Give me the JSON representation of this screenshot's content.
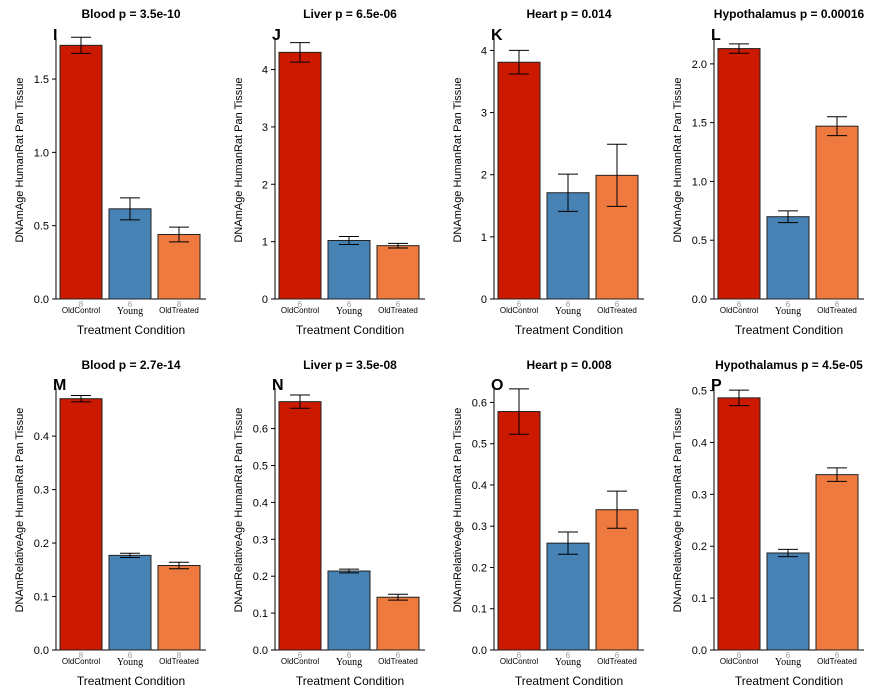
{
  "colors": {
    "OldControl": "#cc1a00",
    "Young": "#4682b4",
    "OldTreated": "#ee7a3f",
    "bar_stroke": "#222222",
    "n_label": "#999999"
  },
  "chart_data": [
    {
      "letter": "I",
      "title": "Blood p = 3.5e-10",
      "type": "bar",
      "ylabel": "DNAmAge HumanRat Pan Tissue",
      "xlabel": "Treatment Condition",
      "ylim": [
        0,
        1.78
      ],
      "yticks": [
        "0.0",
        "0.5",
        "1.0",
        "1.5"
      ],
      "categories": [
        "OldControl",
        "Young",
        "OldTreated"
      ],
      "n": [
        "8",
        "6",
        "8"
      ],
      "values": [
        1.73,
        0.615,
        0.44
      ],
      "errors": [
        0.055,
        0.075,
        0.05
      ]
    },
    {
      "letter": "J",
      "title": "Liver p = 6.5e-06",
      "type": "bar",
      "ylabel": "DNAmAge HumanRat Pan Tissue",
      "xlabel": "Treatment Condition",
      "ylim": [
        0,
        4.55
      ],
      "yticks": [
        "0",
        "1",
        "2",
        "3",
        "4"
      ],
      "categories": [
        "OldControl",
        "Young",
        "OldTreated"
      ],
      "n": [
        "6",
        "6",
        "6"
      ],
      "values": [
        4.3,
        1.02,
        0.93
      ],
      "errors": [
        0.17,
        0.07,
        0.04
      ]
    },
    {
      "letter": "K",
      "title": "Heart p = 0.014",
      "type": "bar",
      "ylabel": "DNAmAge HumanRat Pan Tissue",
      "xlabel": "Treatment Condition",
      "ylim": [
        0,
        4.2
      ],
      "yticks": [
        "0",
        "1",
        "2",
        "3",
        "4"
      ],
      "categories": [
        "OldControl",
        "Young",
        "OldTreated"
      ],
      "n": [
        "6",
        "6",
        "6"
      ],
      "values": [
        3.81,
        1.71,
        1.99
      ],
      "errors": [
        0.19,
        0.3,
        0.5
      ]
    },
    {
      "letter": "L",
      "title": "Hypothalamus p = 0.00016",
      "type": "bar",
      "ylabel": "DNAmAge HumanRat Pan Tissue",
      "xlabel": "Treatment Condition",
      "ylim": [
        0,
        2.22
      ],
      "yticks": [
        "0.0",
        "0.5",
        "1.0",
        "1.5",
        "2.0"
      ],
      "categories": [
        "OldControl",
        "Young",
        "OldTreated"
      ],
      "n": [
        "6",
        "6",
        "6"
      ],
      "values": [
        2.13,
        0.7,
        1.47
      ],
      "errors": [
        0.04,
        0.05,
        0.08
      ]
    },
    {
      "letter": "M",
      "title": "Blood p = 2.7e-14",
      "type": "bar",
      "ylabel": "DNAmRelativeAge HumanRat Pan Tissue",
      "xlabel": "Treatment Condition",
      "ylim": [
        0,
        0.49
      ],
      "yticks": [
        "0.0",
        "0.1",
        "0.2",
        "0.3",
        "0.4"
      ],
      "categories": [
        "OldControl",
        "Young",
        "OldTreated"
      ],
      "n": [
        "8",
        "6",
        "8"
      ],
      "values": [
        0.47,
        0.177,
        0.158
      ],
      "errors": [
        0.006,
        0.004,
        0.006
      ]
    },
    {
      "letter": "N",
      "title": "Liver p = 3.5e-08",
      "type": "bar",
      "ylabel": "DNAmRelativeAge HumanRat Pan Tissue",
      "xlabel": "Treatment Condition",
      "ylim": [
        0,
        0.71
      ],
      "yticks": [
        "0.0",
        "0.1",
        "0.2",
        "0.3",
        "0.4",
        "0.5",
        "0.6"
      ],
      "categories": [
        "OldControl",
        "Young",
        "OldTreated"
      ],
      "n": [
        "6",
        "6",
        "6"
      ],
      "values": [
        0.673,
        0.214,
        0.143
      ],
      "errors": [
        0.018,
        0.005,
        0.008
      ]
    },
    {
      "letter": "O",
      "title": "Heart p = 0.008",
      "type": "bar",
      "ylabel": "DNAmRelativeAge HumanRat Pan Tissue",
      "xlabel": "Treatment Condition",
      "ylim": [
        0,
        0.635
      ],
      "yticks": [
        "0.0",
        "0.1",
        "0.2",
        "0.3",
        "0.4",
        "0.5",
        "0.6"
      ],
      "categories": [
        "OldControl",
        "Young",
        "OldTreated"
      ],
      "n": [
        "6",
        "6",
        "6"
      ],
      "values": [
        0.578,
        0.259,
        0.34
      ],
      "errors": [
        0.055,
        0.027,
        0.045
      ]
    },
    {
      "letter": "P",
      "title": "Hypothalamus p = 4.5e-05",
      "type": "bar",
      "ylabel": "DNAmRelativeAge HumanRat Pan Tissue",
      "xlabel": "Treatment Condition",
      "ylim": [
        0,
        0.505
      ],
      "yticks": [
        "0.0",
        "0.1",
        "0.2",
        "0.3",
        "0.4",
        "0.5"
      ],
      "categories": [
        "OldControl",
        "Young",
        "OldTreated"
      ],
      "n": [
        "6",
        "6",
        "6"
      ],
      "values": [
        0.486,
        0.187,
        0.338
      ],
      "errors": [
        0.015,
        0.007,
        0.013
      ]
    }
  ]
}
